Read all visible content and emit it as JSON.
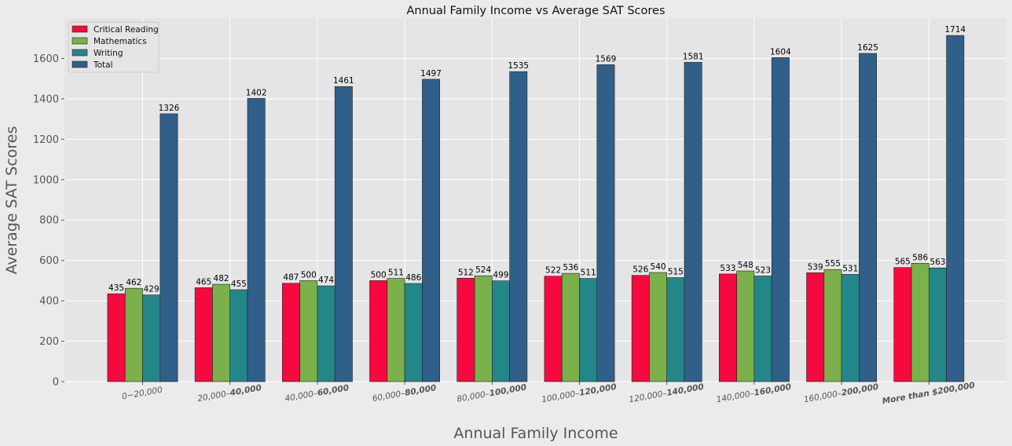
{
  "chart_data": {
    "type": "bar",
    "title": "Annual Family Income vs Average SAT Scores",
    "xlabel": "Annual Family Income",
    "ylabel": "Average SAT Scores",
    "ylim": [
      0,
      1800
    ],
    "yticks": [
      0,
      200,
      400,
      600,
      800,
      1000,
      1200,
      1400,
      1600
    ],
    "grid": true,
    "legend_position": "top-left",
    "categories": [
      {
        "plain": "$0 - $20,000",
        "pre": "0−20,000",
        "bold": ""
      },
      {
        "plain": "$20,000 - $40,000",
        "pre": "20,000–",
        "bold": "40,000"
      },
      {
        "plain": "$40,000 - $60,000",
        "pre": "40,000–",
        "bold": "60,000"
      },
      {
        "plain": "$60,000 - $80,000",
        "pre": "60,000–",
        "bold": "80,000"
      },
      {
        "plain": "$80,000 - $100,000",
        "pre": "80,000–",
        "bold": "100,000"
      },
      {
        "plain": "$100,000 - $120,000",
        "pre": "100,000–",
        "bold": "120,000"
      },
      {
        "plain": "$120,000 - $140,000",
        "pre": "120,000–",
        "bold": "140,000"
      },
      {
        "plain": "$140,000 - $160,000",
        "pre": "140,000–",
        "bold": "160,000"
      },
      {
        "plain": "$160,000 - $200,000",
        "pre": "160,000–",
        "bold": "200,000"
      },
      {
        "plain": "More than $200,000",
        "pre": "",
        "bold": "More than $200,000"
      }
    ],
    "series": [
      {
        "name": "Critical Reading",
        "color": "#f5093f",
        "values": [
          435,
          465,
          487,
          500,
          512,
          522,
          526,
          533,
          539,
          565
        ]
      },
      {
        "name": "Mathematics",
        "color": "#7bb04b",
        "values": [
          462,
          482,
          500,
          511,
          524,
          536,
          540,
          548,
          555,
          586
        ]
      },
      {
        "name": "Writing",
        "color": "#23878a",
        "values": [
          429,
          455,
          474,
          486,
          499,
          511,
          515,
          523,
          531,
          563
        ]
      },
      {
        "name": "Total",
        "color": "#305f8a",
        "values": [
          1326,
          1402,
          1461,
          1497,
          1535,
          1569,
          1581,
          1604,
          1625,
          1714
        ]
      }
    ]
  }
}
